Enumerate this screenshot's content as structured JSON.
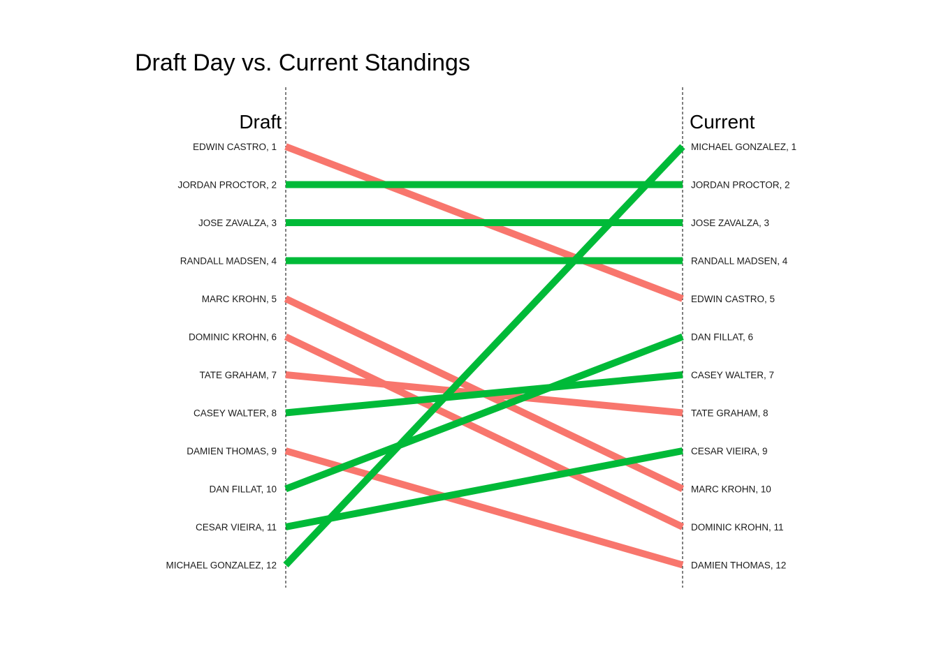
{
  "chart_data": {
    "type": "slope",
    "title": "Draft Day vs. Current Standings",
    "left_header": "Draft",
    "right_header": "Current",
    "y_scale": "rank 1 (top) to 12 (bottom)",
    "colors": {
      "improved_or_same": "#00BA38",
      "declined": "#F8766D",
      "axis": "#000000"
    },
    "players": [
      {
        "name": "EDWIN CASTRO",
        "draft": 1,
        "current": 5
      },
      {
        "name": "JORDAN PROCTOR",
        "draft": 2,
        "current": 2
      },
      {
        "name": "JOSE ZAVALZA",
        "draft": 3,
        "current": 3
      },
      {
        "name": "RANDALL MADSEN",
        "draft": 4,
        "current": 4
      },
      {
        "name": "MARC KROHN",
        "draft": 5,
        "current": 10
      },
      {
        "name": "DOMINIC KROHN",
        "draft": 6,
        "current": 11
      },
      {
        "name": "TATE GRAHAM",
        "draft": 7,
        "current": 8
      },
      {
        "name": "CASEY WALTER",
        "draft": 8,
        "current": 7
      },
      {
        "name": "DAMIEN THOMAS",
        "draft": 9,
        "current": 12
      },
      {
        "name": "DAN FILLAT",
        "draft": 10,
        "current": 6
      },
      {
        "name": "CESAR VIEIRA",
        "draft": 11,
        "current": 9
      },
      {
        "name": "MICHAEL GONZALEZ",
        "draft": 12,
        "current": 1
      }
    ],
    "left_labels": [
      "EDWIN CASTRO, 1",
      "JORDAN PROCTOR, 2",
      "JOSE ZAVALZA, 3",
      "RANDALL MADSEN, 4",
      "MARC KROHN, 5",
      "DOMINIC KROHN, 6",
      "TATE GRAHAM, 7",
      "CASEY WALTER, 8",
      "DAMIEN THOMAS, 9",
      "DAN FILLAT, 10",
      "CESAR VIEIRA, 11",
      "MICHAEL GONZALEZ, 12"
    ],
    "right_labels": [
      "MICHAEL GONZALEZ, 1",
      "JORDAN PROCTOR, 2",
      "JOSE ZAVALZA, 3",
      "RANDALL MADSEN, 4",
      "EDWIN CASTRO, 5",
      "DAN FILLAT, 6",
      "CASEY WALTER, 7",
      "TATE GRAHAM, 8",
      "CESAR VIEIRA, 9",
      "MARC KROHN, 10",
      "DOMINIC KROHN, 11",
      "DAMIEN THOMAS, 12"
    ]
  }
}
